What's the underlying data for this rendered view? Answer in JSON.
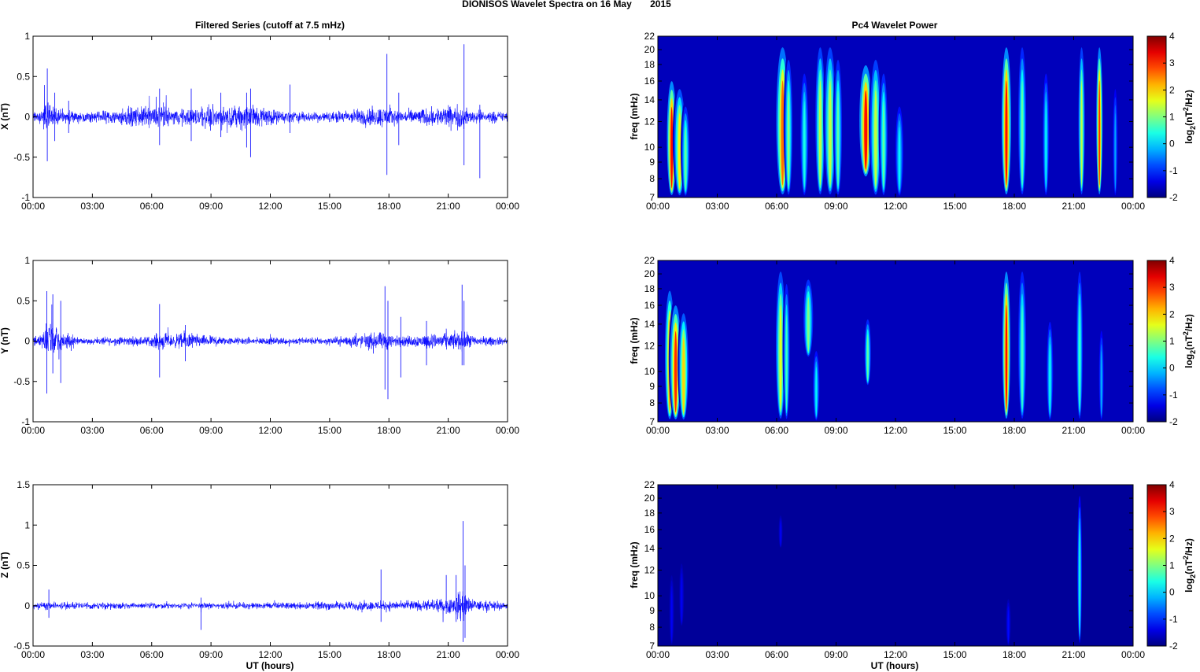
{
  "figure_title": "DIONISOS Wavelet Spectra on 16 May       2015",
  "colors": {
    "trace": "#0000ff",
    "frame": "#000000",
    "background": "#ffffff"
  },
  "chart_data": [
    {
      "type": "line",
      "title": "Filtered Series (cutoff at 7.5 mHz)",
      "ylabel": "X (nT)",
      "xlabel": "",
      "ylim": [
        -1,
        1
      ],
      "yticks": [
        "-1",
        "-0.5",
        "0",
        "0.5",
        "1"
      ],
      "xticks": [
        "00:00",
        "03:00",
        "06:00",
        "09:00",
        "12:00",
        "15:00",
        "18:00",
        "21:00",
        "00:00"
      ],
      "xlim_hours": [
        0,
        24
      ],
      "series": [
        {
          "baseline_amplitude": 0.08,
          "envelope": [
            [
              0.3,
              0.08
            ],
            [
              0.6,
              0.22
            ],
            [
              1.0,
              0.18
            ],
            [
              1.5,
              0.12
            ],
            [
              2.5,
              0.08
            ],
            [
              6.0,
              0.18
            ],
            [
              6.5,
              0.22
            ],
            [
              7.0,
              0.12
            ],
            [
              8.0,
              0.14
            ],
            [
              9.0,
              0.18
            ],
            [
              10.0,
              0.15
            ],
            [
              10.8,
              0.25
            ],
            [
              11.5,
              0.18
            ],
            [
              12.5,
              0.1
            ],
            [
              15.0,
              0.08
            ],
            [
              17.8,
              0.18
            ],
            [
              18.5,
              0.1
            ],
            [
              21.6,
              0.2
            ],
            [
              22.0,
              0.12
            ],
            [
              24.0,
              0.08
            ]
          ],
          "spikes": [
            [
              0.72,
              0.6,
              -0.55
            ],
            [
              1.1,
              0.3,
              -0.3
            ],
            [
              1.8,
              0.2,
              -0.2
            ],
            [
              6.4,
              0.35,
              -0.35
            ],
            [
              8.0,
              0.35,
              -0.3
            ],
            [
              9.5,
              0.3,
              -0.25
            ],
            [
              10.8,
              0.3,
              -0.38
            ],
            [
              11.0,
              0.35,
              -0.5
            ],
            [
              13.0,
              0.4,
              -0.2
            ],
            [
              17.9,
              0.78,
              -0.72
            ],
            [
              18.5,
              0.3,
              -0.35
            ],
            [
              21.8,
              0.9,
              -0.6
            ],
            [
              22.6,
              0.15,
              -0.76
            ]
          ]
        }
      ]
    },
    {
      "type": "line",
      "title": "",
      "ylabel": "Y (nT)",
      "xlabel": "",
      "ylim": [
        -1,
        1
      ],
      "yticks": [
        "-1",
        "-0.5",
        "0",
        "0.5",
        "1"
      ],
      "xticks": [
        "00:00",
        "03:00",
        "06:00",
        "09:00",
        "12:00",
        "15:00",
        "18:00",
        "21:00",
        "00:00"
      ],
      "xlim_hours": [
        0,
        24
      ],
      "series": [
        {
          "baseline_amplitude": 0.06,
          "envelope": [
            [
              0.3,
              0.1
            ],
            [
              0.6,
              0.3
            ],
            [
              1.0,
              0.28
            ],
            [
              1.5,
              0.14
            ],
            [
              2.5,
              0.06
            ],
            [
              6.0,
              0.08
            ],
            [
              6.4,
              0.16
            ],
            [
              7.0,
              0.1
            ],
            [
              7.7,
              0.15
            ],
            [
              8.5,
              0.1
            ],
            [
              10.0,
              0.06
            ],
            [
              15.0,
              0.06
            ],
            [
              17.8,
              0.15
            ],
            [
              18.5,
              0.08
            ],
            [
              21.7,
              0.16
            ],
            [
              22.5,
              0.08
            ],
            [
              24.0,
              0.06
            ]
          ],
          "spikes": [
            [
              0.7,
              0.62,
              -0.65
            ],
            [
              1.0,
              0.58,
              -0.4
            ],
            [
              1.4,
              0.5,
              -0.52
            ],
            [
              6.4,
              0.46,
              -0.45
            ],
            [
              7.7,
              0.2,
              -0.25
            ],
            [
              17.8,
              0.68,
              -0.6
            ],
            [
              17.95,
              0.5,
              -0.72
            ],
            [
              18.6,
              0.3,
              -0.45
            ],
            [
              19.9,
              0.25,
              -0.3
            ],
            [
              21.7,
              0.7,
              -0.3
            ],
            [
              21.8,
              0.5,
              -0.3
            ]
          ]
        }
      ]
    },
    {
      "type": "line",
      "title": "",
      "ylabel": "Z (nT)",
      "xlabel": "UT (hours)",
      "ylim": [
        -0.5,
        1.5
      ],
      "yticks": [
        "-0.5",
        "0",
        "0.5",
        "1",
        "1.5"
      ],
      "xticks": [
        "00:00",
        "03:00",
        "06:00",
        "09:00",
        "12:00",
        "15:00",
        "18:00",
        "21:00",
        "00:00"
      ],
      "xlim_hours": [
        0,
        24
      ],
      "series": [
        {
          "baseline_amplitude": 0.05,
          "envelope": [
            [
              1.0,
              0.06
            ],
            [
              6.0,
              0.05
            ],
            [
              12.0,
              0.05
            ],
            [
              17.5,
              0.08
            ],
            [
              18.5,
              0.07
            ],
            [
              20.5,
              0.1
            ],
            [
              21.3,
              0.15
            ],
            [
              21.7,
              0.3
            ],
            [
              22.2,
              0.1
            ],
            [
              24.0,
              0.05
            ]
          ],
          "spikes": [
            [
              0.8,
              0.2,
              -0.15
            ],
            [
              8.5,
              0.1,
              -0.3
            ],
            [
              17.6,
              0.45,
              -0.2
            ],
            [
              20.9,
              0.38,
              -0.1
            ],
            [
              21.4,
              0.38,
              -0.2
            ],
            [
              21.75,
              1.05,
              -0.45
            ],
            [
              21.85,
              0.5,
              -0.4
            ]
          ]
        }
      ]
    },
    {
      "type": "heatmap",
      "title": "Pc4 Wavelet Power",
      "ylabel": "freq (mHz)",
      "xlabel": "",
      "ylim": [
        7,
        22
      ],
      "yscale": "log",
      "yticks": [
        "7",
        "8",
        "9",
        "10",
        "12",
        "14",
        "16",
        "18",
        "20",
        "22"
      ],
      "xticks": [
        "00:00",
        "03:00",
        "06:00",
        "09:00",
        "12:00",
        "15:00",
        "18:00",
        "21:00",
        "00:00"
      ],
      "xlim_hours": [
        0,
        24
      ],
      "colorbar": {
        "label": "log2(nT2/Hz)",
        "range": [
          -2,
          4
        ],
        "ticks": [
          "-2",
          "-1",
          "0",
          "1",
          "2",
          "3",
          "4"
        ],
        "colormap": "jet"
      },
      "hot_streaks": [
        [
          0.7,
          0.6,
          7,
          17,
          3.2
        ],
        [
          1.1,
          0.7,
          7,
          16,
          1.8
        ],
        [
          1.4,
          0.5,
          7,
          14,
          0.8
        ],
        [
          6.3,
          0.8,
          7,
          22,
          2.6
        ],
        [
          6.6,
          0.5,
          7,
          20,
          1.0
        ],
        [
          7.4,
          0.5,
          7,
          18,
          0.4
        ],
        [
          8.2,
          0.6,
          7,
          22,
          1.4
        ],
        [
          8.7,
          0.7,
          7,
          22,
          1.4
        ],
        [
          9.1,
          0.5,
          7,
          20,
          0.8
        ],
        [
          10.5,
          0.8,
          8,
          19,
          3.2
        ],
        [
          11.0,
          0.7,
          7,
          20,
          1.4
        ],
        [
          11.4,
          0.5,
          7,
          18,
          0.8
        ],
        [
          12.2,
          0.5,
          7,
          14,
          0.2
        ],
        [
          17.6,
          0.6,
          7,
          22,
          3.2
        ],
        [
          18.4,
          0.5,
          7,
          22,
          0.8
        ],
        [
          19.6,
          0.4,
          7,
          18,
          0.2
        ],
        [
          21.4,
          0.4,
          7,
          22,
          1.4
        ],
        [
          22.3,
          0.4,
          7,
          22,
          3.0
        ],
        [
          23.1,
          0.3,
          7,
          16,
          -0.3
        ]
      ]
    },
    {
      "type": "heatmap",
      "title": "",
      "ylabel": "freq (mHz)",
      "xlabel": "",
      "ylim": [
        7,
        22
      ],
      "yscale": "log",
      "yticks": [
        "7",
        "8",
        "9",
        "10",
        "12",
        "14",
        "16",
        "18",
        "20",
        "22"
      ],
      "xticks": [
        "00:00",
        "03:00",
        "06:00",
        "09:00",
        "12:00",
        "15:00",
        "18:00",
        "21:00",
        "00:00"
      ],
      "xlim_hours": [
        0,
        24
      ],
      "colorbar": {
        "label": "log2(nT2/Hz)",
        "range": [
          -2,
          4
        ],
        "ticks": [
          "-2",
          "-1",
          "0",
          "1",
          "2",
          "3",
          "4"
        ],
        "colormap": "jet"
      },
      "hot_streaks": [
        [
          0.6,
          0.6,
          7,
          19,
          2.4
        ],
        [
          0.9,
          0.7,
          7,
          17,
          3.0
        ],
        [
          1.3,
          0.6,
          7,
          16,
          2.0
        ],
        [
          6.2,
          0.6,
          7,
          22,
          1.6
        ],
        [
          6.5,
          0.4,
          7,
          20,
          0.6
        ],
        [
          7.6,
          0.6,
          11,
          20,
          1.0
        ],
        [
          8.0,
          0.4,
          7,
          12,
          0.2
        ],
        [
          10.6,
          0.4,
          9,
          15,
          0.8
        ],
        [
          17.6,
          0.5,
          7,
          22,
          3.2
        ],
        [
          18.4,
          0.5,
          7,
          22,
          0.6
        ],
        [
          19.8,
          0.4,
          7,
          15,
          0.3
        ],
        [
          21.3,
          0.4,
          7,
          22,
          0.6
        ],
        [
          22.4,
          0.3,
          7,
          14,
          -0.2
        ]
      ]
    },
    {
      "type": "heatmap",
      "title": "",
      "ylabel": "freq (mHz)",
      "xlabel": "UT (hours)",
      "ylim": [
        7,
        22
      ],
      "yscale": "log",
      "yticks": [
        "7",
        "8",
        "9",
        "10",
        "12",
        "14",
        "16",
        "18",
        "20",
        "22"
      ],
      "xticks": [
        "00:00",
        "03:00",
        "06:00",
        "09:00",
        "12:00",
        "15:00",
        "18:00",
        "21:00",
        "00:00"
      ],
      "xlim_hours": [
        0,
        24
      ],
      "colorbar": {
        "label": "log2(nT2/Hz)",
        "range": [
          -2,
          4
        ],
        "ticks": [
          "-2",
          "-1",
          "0",
          "1",
          "2",
          "3",
          "4"
        ],
        "colormap": "jet"
      },
      "hot_streaks": [
        [
          0.7,
          0.3,
          7,
          12,
          -1.3
        ],
        [
          1.2,
          0.3,
          8,
          13,
          -1.3
        ],
        [
          6.2,
          0.25,
          14,
          18,
          -1.3
        ],
        [
          17.7,
          0.3,
          7,
          10,
          -1.2
        ],
        [
          21.3,
          0.3,
          7,
          22,
          0.4
        ]
      ]
    }
  ]
}
